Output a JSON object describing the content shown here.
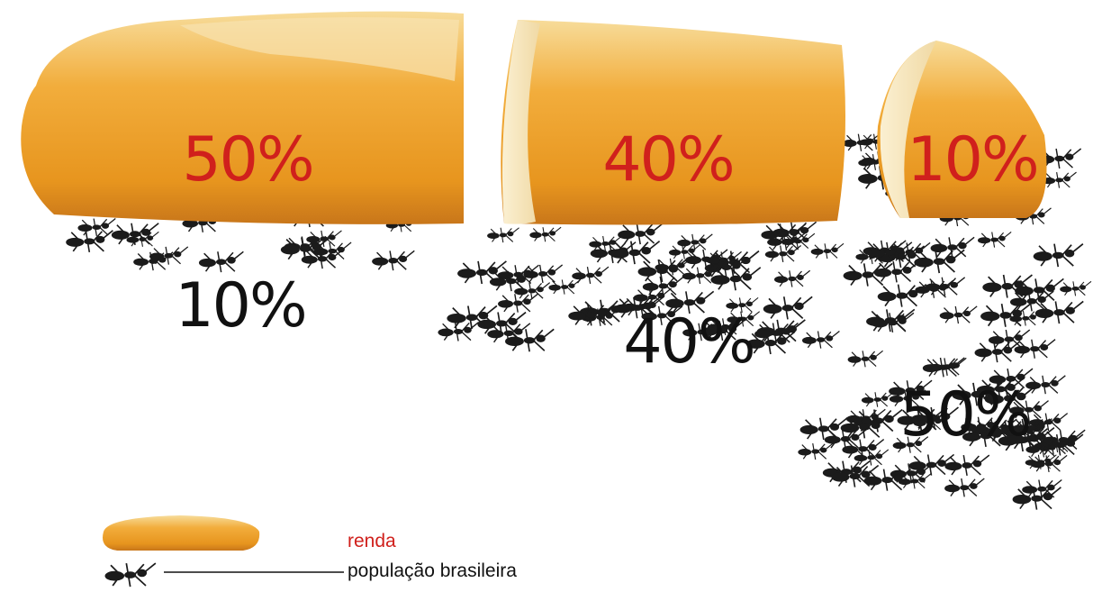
{
  "groups": [
    {
      "income": "50%",
      "population": "10%"
    },
    {
      "income": "40%",
      "population": "40%"
    },
    {
      "income": "10%",
      "population": "50%"
    }
  ],
  "legend": {
    "income": "renda",
    "population": "população brasileira"
  }
}
